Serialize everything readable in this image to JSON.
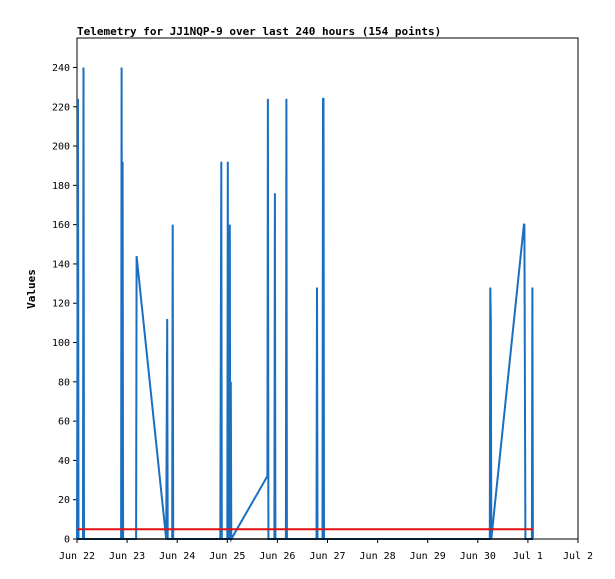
{
  "chart_data": {
    "type": "line",
    "title": "Telemetry for JJ1NQP-9 over last 240 hours (154 points)",
    "xlabel": "",
    "ylabel": "Values",
    "xlim": [
      0,
      10
    ],
    "ylim": [
      0,
      255
    ],
    "yticks": [
      0,
      20,
      40,
      60,
      80,
      100,
      120,
      140,
      160,
      180,
      200,
      220,
      240
    ],
    "xticks": [
      {
        "label": "Jun 22",
        "x": 0
      },
      {
        "label": "Jun 23",
        "x": 1
      },
      {
        "label": "Jun 24",
        "x": 2
      },
      {
        "label": "Jun 25",
        "x": 3
      },
      {
        "label": "Jun 26",
        "x": 4
      },
      {
        "label": "Jun 27",
        "x": 5
      },
      {
        "label": "Jun 28",
        "x": 6
      },
      {
        "label": "Jun 29",
        "x": 7
      },
      {
        "label": "Jun 30",
        "x": 8
      },
      {
        "label": "Jul 1",
        "x": 9
      },
      {
        "label": "Jul 2",
        "x": 10
      }
    ],
    "grid": false,
    "legend": "none",
    "series": [
      {
        "color": "#1a6fc0",
        "points": [
          [
            0.0,
            0
          ],
          [
            0.01,
            112
          ],
          [
            0.02,
            224
          ],
          [
            0.03,
            0
          ],
          [
            0.04,
            0
          ],
          [
            0.12,
            0
          ],
          [
            0.13,
            240
          ],
          [
            0.14,
            0
          ],
          [
            0.88,
            0
          ],
          [
            0.89,
            240
          ],
          [
            0.9,
            0
          ],
          [
            0.91,
            192
          ],
          [
            0.92,
            0
          ],
          [
            1.18,
            0
          ],
          [
            1.19,
            144
          ],
          [
            1.78,
            0
          ],
          [
            1.79,
            56
          ],
          [
            1.8,
            112
          ],
          [
            1.81,
            0
          ],
          [
            1.9,
            0
          ],
          [
            1.91,
            160
          ],
          [
            1.92,
            0
          ],
          [
            2.86,
            0
          ],
          [
            2.87,
            96
          ],
          [
            2.88,
            192
          ],
          [
            2.89,
            0
          ],
          [
            3.0,
            0
          ],
          [
            3.01,
            192
          ],
          [
            3.02,
            0
          ],
          [
            3.04,
            0
          ],
          [
            3.05,
            160
          ],
          [
            3.06,
            0
          ],
          [
            3.07,
            80
          ],
          [
            3.08,
            0
          ],
          [
            3.8,
            32
          ],
          [
            3.81,
            224
          ],
          [
            3.82,
            0
          ],
          [
            3.94,
            0
          ],
          [
            3.95,
            176
          ],
          [
            3.96,
            0
          ],
          [
            4.17,
            0
          ],
          [
            4.18,
            224
          ],
          [
            4.19,
            0
          ],
          [
            4.78,
            0
          ],
          [
            4.79,
            128
          ],
          [
            4.8,
            0
          ],
          [
            4.9,
            0
          ],
          [
            4.91,
            224
          ],
          [
            4.92,
            224
          ],
          [
            4.93,
            0
          ],
          [
            8.24,
            0
          ],
          [
            8.25,
            128
          ],
          [
            8.26,
            112
          ],
          [
            8.27,
            0
          ],
          [
            8.92,
            160
          ],
          [
            8.93,
            160
          ],
          [
            8.94,
            80
          ],
          [
            8.95,
            0
          ],
          [
            9.08,
            0
          ],
          [
            9.09,
            128
          ],
          [
            9.1,
            0
          ]
        ]
      },
      {
        "color": "#e01010",
        "points": [
          [
            0.0,
            5
          ],
          [
            9.1,
            5
          ]
        ]
      },
      {
        "color": "#000000",
        "points": [
          [
            0.0,
            0
          ],
          [
            9.1,
            0
          ]
        ]
      }
    ]
  }
}
